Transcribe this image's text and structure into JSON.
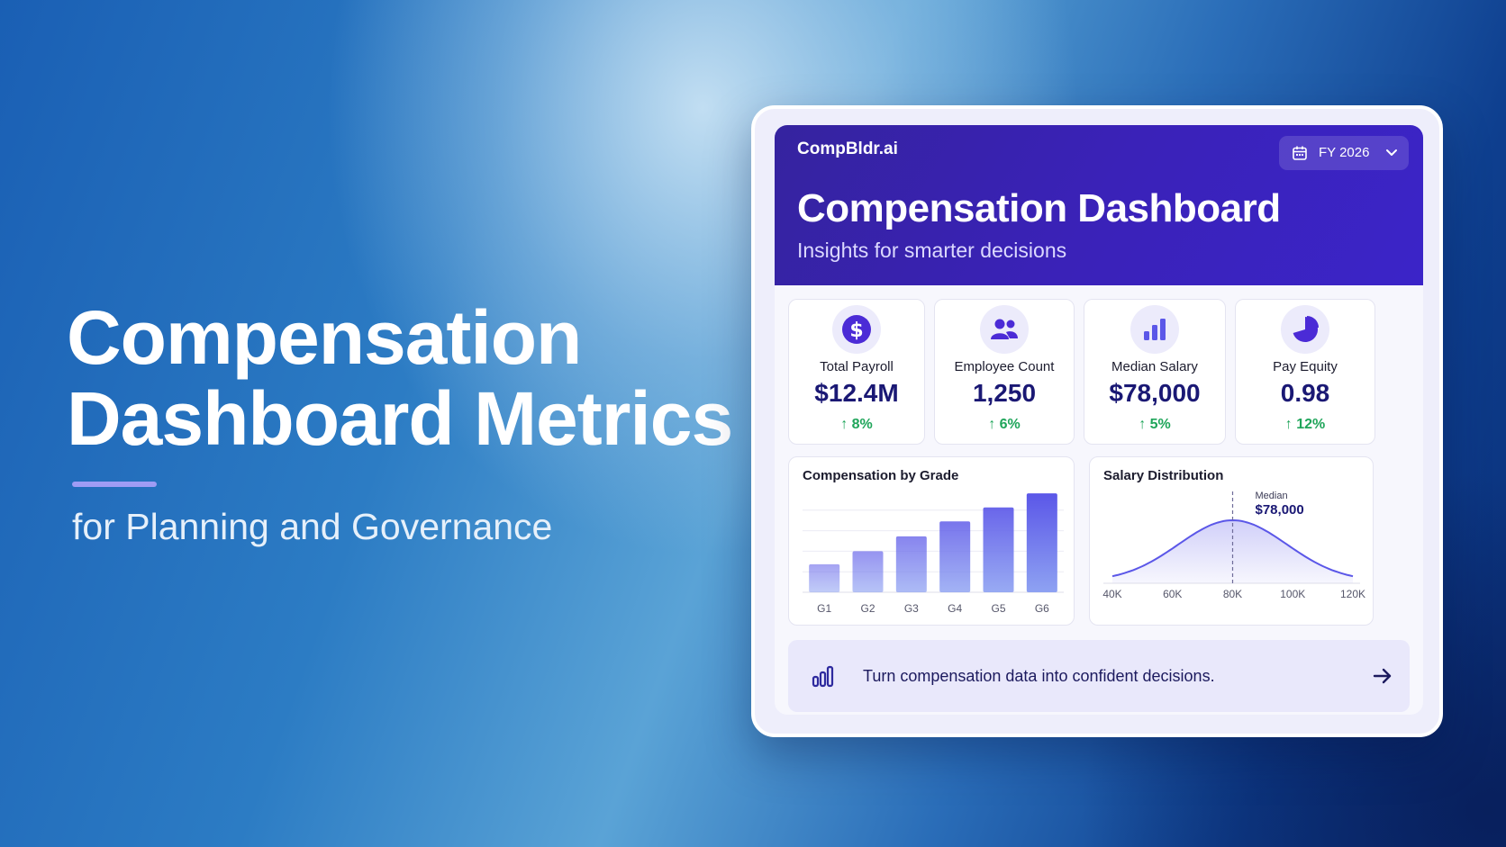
{
  "hero": {
    "title_line1": "Compensation",
    "title_line2": "Dashboard Metrics",
    "subtitle": "for Planning and Governance"
  },
  "dashboard": {
    "brand": "CompBldr.ai",
    "period_selector": {
      "value": "FY 2026",
      "icon": "calendar-icon"
    },
    "title": "Compensation Dashboard",
    "subtitle": "Insights for smarter decisions"
  },
  "kpis": [
    {
      "label": "Total Payroll",
      "value": "$12.4M",
      "change": "8%",
      "icon": "dollar-icon"
    },
    {
      "label": "Employee Count",
      "value": "1,250",
      "change": "6%",
      "icon": "users-icon"
    },
    {
      "label": "Median Salary",
      "value": "$78,000",
      "change": "5%",
      "icon": "bar-chart-icon"
    },
    {
      "label": "Pay Equity",
      "value": "0.98",
      "change": "12%",
      "icon": "pie-chart-icon"
    }
  ],
  "chart_data": [
    {
      "type": "bar",
      "title": "Compensation by Grade",
      "categories": [
        "G1",
        "G2",
        "G3",
        "G4",
        "G5",
        "G6"
      ],
      "values": [
        30,
        44,
        60,
        76,
        91,
        106
      ],
      "ylim": [
        0,
        110
      ],
      "grid": true
    },
    {
      "type": "area",
      "title": "Salary Distribution",
      "x_ticks": [
        "40K",
        "60K",
        "80K",
        "100K",
        "120K"
      ],
      "x": [
        40,
        50,
        60,
        70,
        80,
        90,
        100,
        110,
        120
      ],
      "y": [
        0.05,
        0.18,
        0.55,
        0.9,
        1.0,
        0.9,
        0.55,
        0.18,
        0.05
      ],
      "xlim": [
        40,
        120
      ],
      "annotation": {
        "label": "Median",
        "value": "$78,000",
        "x": 80
      }
    }
  ],
  "cta": {
    "text": "Turn compensation data into confident decisions.",
    "icon": "bar-chart-icon",
    "action_icon": "arrow-right-icon"
  },
  "colors": {
    "header": "#3a22b8",
    "accent": "#5b57e8",
    "value_text": "#1a1874",
    "positive": "#1fa55a"
  }
}
